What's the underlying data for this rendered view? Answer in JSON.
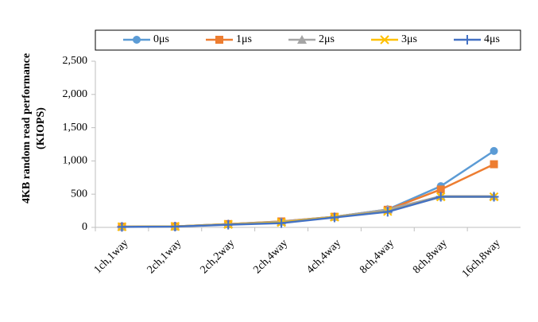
{
  "chart_data": {
    "type": "line",
    "ylabel": [
      "4KB random read performance",
      "(KIOPS)"
    ],
    "categories": [
      "1ch,1way",
      "2ch,1way",
      "2ch,2way",
      "2ch,4way",
      "4ch,4way",
      "8ch,4way",
      "8ch,8way",
      "16ch,8way"
    ],
    "series": [
      {
        "name": "0μs",
        "color": "#5b9bd5",
        "marker": "circle",
        "values": [
          10,
          15,
          50,
          90,
          160,
          270,
          620,
          1150
        ]
      },
      {
        "name": "1μs",
        "color": "#ed7d31",
        "marker": "square",
        "values": [
          10,
          15,
          50,
          90,
          160,
          265,
          570,
          950
        ]
      },
      {
        "name": "2μs",
        "color": "#a5a5a5",
        "marker": "triangle",
        "values": [
          10,
          15,
          50,
          85,
          160,
          270,
          470,
          470
        ]
      },
      {
        "name": "3μs",
        "color": "#ffc000",
        "marker": "x",
        "values": [
          10,
          15,
          45,
          75,
          155,
          240,
          460,
          460
        ]
      },
      {
        "name": "4μs",
        "color": "#4472c4",
        "marker": "plus",
        "values": [
          8,
          12,
          40,
          65,
          150,
          235,
          460,
          460
        ]
      }
    ],
    "ylim": [
      0,
      2500
    ],
    "yticks": [
      0,
      500,
      {
        "value": 1000,
        "label": "1,000"
      },
      {
        "value": 1500,
        "label": "1,500"
      },
      {
        "value": 2000,
        "label": "2,000"
      },
      {
        "value": 2500,
        "label": "2,500"
      }
    ],
    "legend": "top",
    "grid": false
  }
}
